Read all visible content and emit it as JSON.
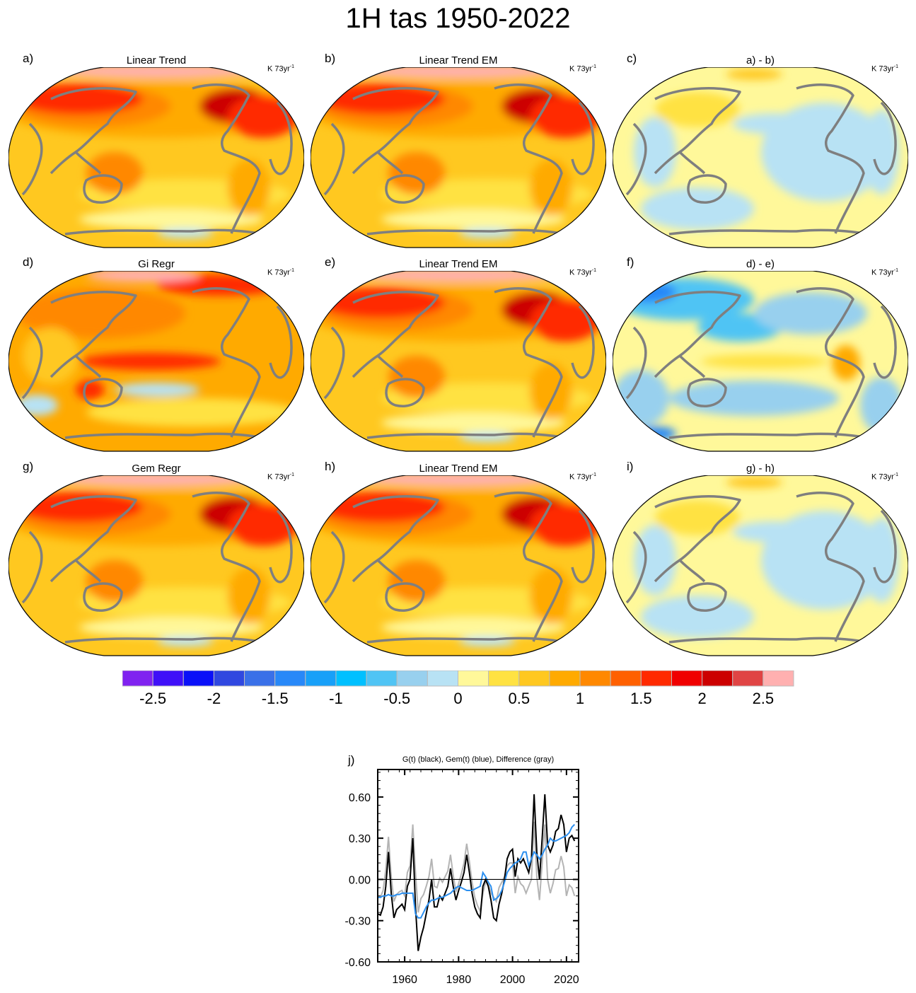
{
  "title": "1H tas 1950-2022",
  "panels": [
    {
      "label": "a)",
      "title": "Linear Trend",
      "units": "K 73yr",
      "units_exp": "-1",
      "style": "trend"
    },
    {
      "label": "b)",
      "title": "Linear Trend EM",
      "units": "K 73yr",
      "units_exp": "-1",
      "style": "trend"
    },
    {
      "label": "c)",
      "title": "a) - b)",
      "units": "K 73yr",
      "units_exp": "-1",
      "style": "diff"
    },
    {
      "label": "d)",
      "title": "Gi Regr",
      "units": "K 73yr",
      "units_exp": "-1",
      "style": "gi"
    },
    {
      "label": "e)",
      "title": "Linear Trend EM",
      "units": "K 73yr",
      "units_exp": "-1",
      "style": "trend"
    },
    {
      "label": "f)",
      "title": "d) - e)",
      "units": "K 73yr",
      "units_exp": "-1",
      "style": "diffstrong"
    },
    {
      "label": "g)",
      "title": "Gem Regr",
      "units": "K 73yr",
      "units_exp": "-1",
      "style": "trend"
    },
    {
      "label": "h)",
      "title": "Linear Trend EM",
      "units": "K 73yr",
      "units_exp": "-1",
      "style": "trend"
    },
    {
      "label": "i)",
      "title": "g) - h)",
      "units": "K 73yr",
      "units_exp": "-1",
      "style": "diff"
    }
  ],
  "colorbar": {
    "levels_min": -2.75,
    "levels_step": 0.25,
    "colors": [
      "#8022f0",
      "#3f10f8",
      "#0a10f8",
      "#3048e0",
      "#3a70e8",
      "#2888f8",
      "#18a0f8",
      "#00c0ff",
      "#50c4f4",
      "#98d0ee",
      "#b8e2f4",
      "#fff89a",
      "#ffe242",
      "#ffc820",
      "#ffaa00",
      "#ff8800",
      "#ff6000",
      "#ff2a00",
      "#f00000",
      "#cc0000",
      "#e04444",
      "#ffb0b0"
    ],
    "labels": [
      "-2.5",
      "-2",
      "-1.5",
      "-1",
      "-0.5",
      "0",
      "0.5",
      "1",
      "1.5",
      "2",
      "2.5"
    ]
  },
  "chart_data": {
    "type": "line",
    "panel_label": "j)",
    "title": "G(t)  (black), Gem(t) (blue), Difference (gray)",
    "xlabel": "",
    "ylabel": "",
    "xlim": [
      1950,
      2024.5
    ],
    "ylim": [
      -0.6,
      0.8
    ],
    "xticks": [
      "1960",
      "1980",
      "2000",
      "2020"
    ],
    "yticks": [
      "-0.60",
      "-0.30",
      "0.00",
      "0.30",
      "0.60"
    ],
    "x": [
      1950,
      1951,
      1952,
      1953,
      1954,
      1955,
      1956,
      1957,
      1958,
      1959,
      1960,
      1961,
      1962,
      1963,
      1964,
      1965,
      1966,
      1967,
      1968,
      1969,
      1970,
      1971,
      1972,
      1973,
      1974,
      1975,
      1976,
      1977,
      1978,
      1979,
      1980,
      1981,
      1982,
      1983,
      1984,
      1985,
      1986,
      1987,
      1988,
      1989,
      1990,
      1991,
      1992,
      1993,
      1994,
      1995,
      1996,
      1997,
      1998,
      1999,
      2000,
      2001,
      2002,
      2003,
      2004,
      2005,
      2006,
      2007,
      2008,
      2009,
      2010,
      2011,
      2012,
      2013,
      2014,
      2015,
      2016,
      2017,
      2018,
      2019,
      2020,
      2021,
      2022,
      2023
    ],
    "series": [
      {
        "name": "Difference",
        "color": "#b4b4b4",
        "values": [
          -0.12,
          -0.13,
          -0.08,
          0.07,
          0.31,
          0.02,
          -0.16,
          -0.11,
          -0.09,
          -0.08,
          -0.12,
          0.05,
          0.1,
          0.4,
          0.05,
          -0.24,
          -0.14,
          -0.11,
          -0.05,
          0.02,
          0.15,
          -0.05,
          -0.06,
          0.01,
          -0.02,
          0.02,
          0.06,
          0.18,
          0.03,
          -0.09,
          -0.03,
          0.04,
          0.12,
          0.26,
          0.13,
          -0.02,
          -0.13,
          -0.19,
          -0.23,
          -0.1,
          -0.02,
          -0.03,
          -0.1,
          -0.13,
          -0.16,
          -0.06,
          -0.02,
          0.02,
          0.1,
          0.12,
          0.12,
          -0.1,
          0.02,
          -0.03,
          -0.05,
          -0.1,
          -0.05,
          0.0,
          0.42,
          0.02,
          -0.15,
          0.12,
          0.4,
          0.0,
          -0.1,
          -0.03,
          0.07,
          0.08,
          0.17,
          0.09,
          -0.12,
          -0.04,
          -0.06,
          -0.12
        ]
      },
      {
        "name": "G(t)",
        "color": "#000000",
        "values": [
          -0.25,
          -0.26,
          -0.2,
          -0.05,
          0.2,
          -0.1,
          -0.28,
          -0.22,
          -0.2,
          -0.18,
          -0.22,
          -0.05,
          0.0,
          0.3,
          -0.2,
          -0.52,
          -0.42,
          -0.35,
          -0.25,
          -0.15,
          0.0,
          -0.2,
          -0.2,
          -0.12,
          -0.15,
          -0.1,
          -0.05,
          0.08,
          -0.05,
          -0.15,
          -0.08,
          -0.02,
          0.05,
          0.18,
          0.05,
          -0.1,
          -0.2,
          -0.25,
          -0.28,
          -0.05,
          0.0,
          -0.05,
          -0.15,
          -0.28,
          -0.3,
          -0.18,
          -0.1,
          0.0,
          0.15,
          0.2,
          0.22,
          0.02,
          0.15,
          0.12,
          0.15,
          0.1,
          0.05,
          0.15,
          0.62,
          0.2,
          0.0,
          0.3,
          0.62,
          0.25,
          0.2,
          0.25,
          0.35,
          0.37,
          0.47,
          0.4,
          0.2,
          0.3,
          0.32,
          0.28
        ]
      },
      {
        "name": "Gem(t)",
        "color": "#2b8ff0",
        "values": [
          -0.13,
          -0.13,
          -0.12,
          -0.12,
          -0.11,
          -0.12,
          -0.12,
          -0.11,
          -0.11,
          -0.1,
          -0.1,
          -0.1,
          -0.1,
          -0.1,
          -0.25,
          -0.28,
          -0.28,
          -0.24,
          -0.2,
          -0.17,
          -0.15,
          -0.15,
          -0.14,
          -0.13,
          -0.13,
          -0.12,
          -0.11,
          -0.1,
          -0.08,
          -0.06,
          -0.05,
          -0.06,
          -0.07,
          -0.08,
          -0.08,
          -0.08,
          -0.07,
          -0.06,
          -0.05,
          0.05,
          0.02,
          -0.02,
          -0.05,
          -0.15,
          -0.14,
          -0.12,
          -0.08,
          -0.02,
          0.05,
          0.08,
          0.1,
          0.12,
          0.13,
          0.15,
          0.2,
          0.2,
          0.1,
          0.15,
          0.2,
          0.18,
          0.15,
          0.18,
          0.22,
          0.25,
          0.3,
          0.28,
          0.28,
          0.29,
          0.3,
          0.31,
          0.32,
          0.34,
          0.38,
          0.4
        ]
      }
    ],
    "zero_line": true,
    "grid": false,
    "legend": "none (described in title)"
  }
}
